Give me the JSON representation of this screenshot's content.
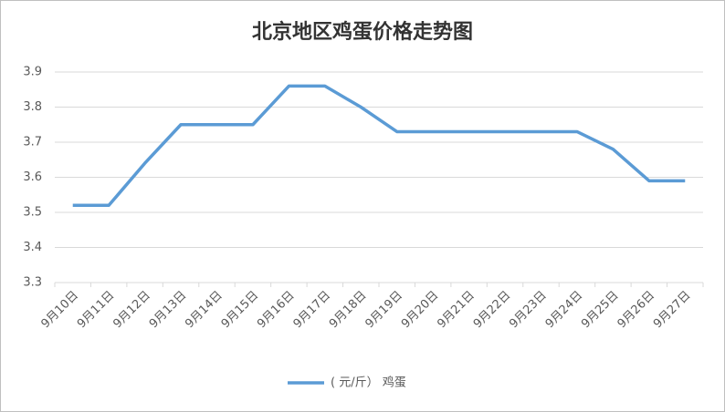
{
  "chart_data": {
    "type": "line",
    "title": "北京地区鸡蛋价格走势图",
    "categories": [
      "9月10日",
      "9月11日",
      "9月12日",
      "9月13日",
      "9月14日",
      "9月15日",
      "9月16日",
      "9月17日",
      "9月18日",
      "9月19日",
      "9月20日",
      "9月21日",
      "9月22日",
      "9月23日",
      "9月24日",
      "9月25日",
      "9月26日",
      "9月27日"
    ],
    "series": [
      {
        "name": "( 元/斤）  鸡蛋",
        "color": "#5b9bd5",
        "values": [
          3.52,
          3.52,
          3.64,
          3.75,
          3.75,
          3.75,
          3.86,
          3.86,
          3.8,
          3.73,
          3.73,
          3.73,
          3.73,
          3.73,
          3.73,
          3.68,
          3.59,
          3.59
        ]
      }
    ],
    "ylim": [
      3.3,
      3.9
    ],
    "yticks": [
      3.3,
      3.4,
      3.5,
      3.6,
      3.7,
      3.8,
      3.9
    ],
    "grid": true,
    "legend": "bottom"
  }
}
